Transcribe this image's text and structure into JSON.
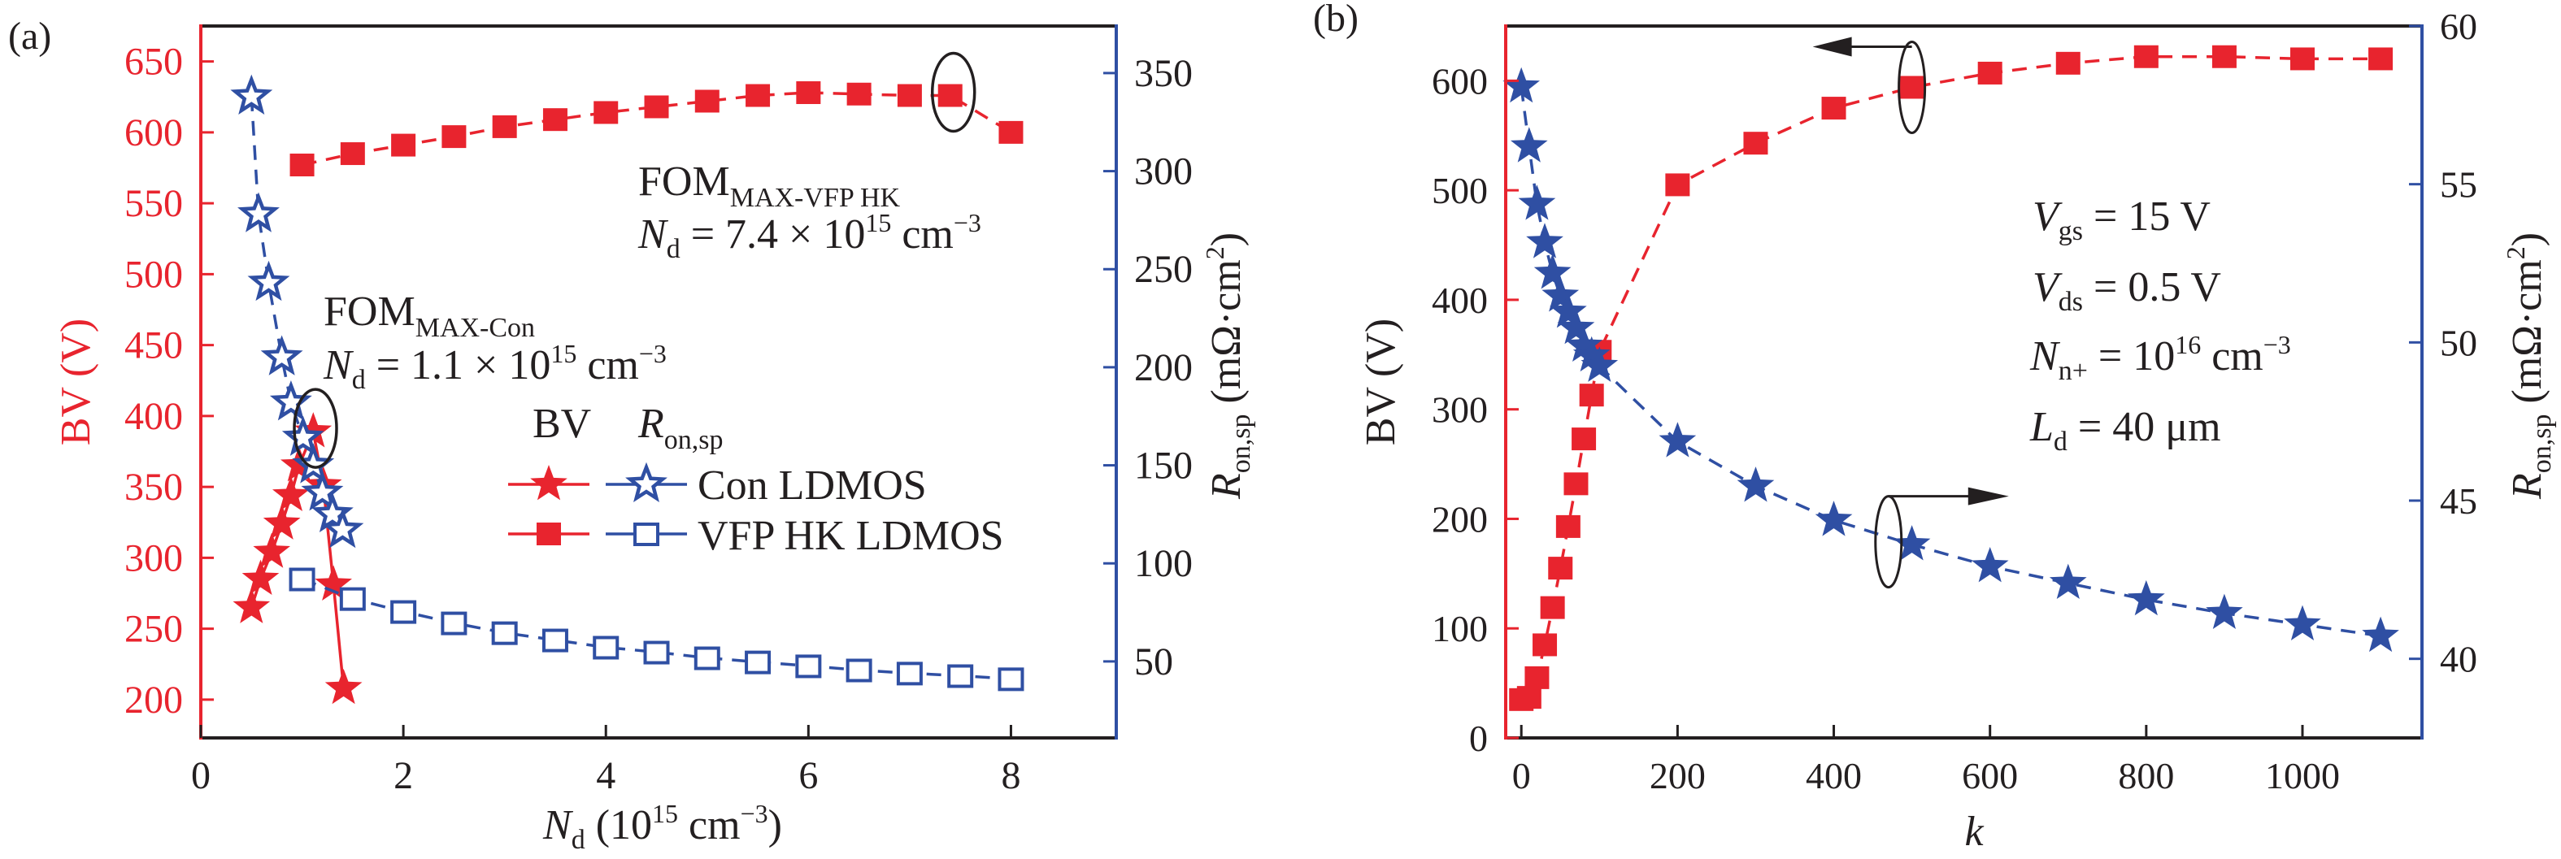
{
  "figure": {
    "colors": {
      "bv": "#e8242e",
      "ron": "#2f4fa3",
      "frame": "#231f20",
      "text": "#231f20"
    }
  },
  "chart_data": [
    {
      "panel_label": "(a)",
      "type": "line",
      "xlabel": {
        "main": "N",
        "sub": "d",
        "rest": " (10",
        "sup": "15",
        "unit": " cm",
        "unit_sup": "−3",
        "close": ")"
      },
      "ylabel_left": "BV (V)",
      "ylabel_right": {
        "main": "R",
        "sub": "on,sp",
        "rest": " (mΩ·cm",
        "sup": "2",
        "close": ")"
      },
      "xlim": [
        0,
        9.04
      ],
      "ylim_left": [
        173,
        675
      ],
      "ylim_right": [
        11,
        374
      ],
      "xticks": [
        0,
        2,
        4,
        6,
        8
      ],
      "yticks_left": [
        200,
        250,
        300,
        350,
        400,
        450,
        500,
        550,
        600,
        650
      ],
      "yticks_right": [
        50,
        100,
        150,
        200,
        250,
        300,
        350
      ],
      "grid": false,
      "legend": {
        "position": "center-right",
        "header_bv": "BV",
        "header_ron": {
          "main": "R",
          "sub": "on,sp"
        },
        "entries": [
          "Con LDMOS",
          "VFP HK LDMOS"
        ]
      },
      "series": [
        {
          "name": "Con LDMOS BV",
          "axis": "left",
          "marker": "star-filled",
          "line": "solid",
          "color": "bv",
          "x": [
            0.5,
            0.59,
            0.7,
            0.8,
            0.89,
            0.97,
            1.11,
            1.21,
            1.31,
            1.41
          ],
          "y": [
            265,
            285,
            304,
            324,
            344,
            365,
            389,
            351,
            281,
            208
          ]
        },
        {
          "name": "Con LDMOS Ron,sp",
          "axis": "right",
          "marker": "star-open",
          "line": "dashed",
          "color": "ron",
          "x": [
            0.5,
            0.57,
            0.67,
            0.8,
            0.89,
            1.01,
            1.11,
            1.2,
            1.3,
            1.4
          ],
          "y": [
            338,
            278,
            243,
            205,
            182,
            164,
            150,
            136,
            125,
            117
          ]
        },
        {
          "name": "VFP HK LDMOS BV",
          "axis": "left",
          "marker": "square-filled",
          "line": "dashed",
          "color": "bv",
          "x": [
            1.0,
            1.5,
            2.0,
            2.5,
            3.0,
            3.5,
            4.0,
            4.5,
            5.0,
            5.5,
            6.0,
            6.5,
            7.0,
            7.4,
            8.0
          ],
          "y": [
            577,
            585,
            591,
            597,
            604,
            609,
            614,
            618,
            622,
            626,
            628,
            627,
            626,
            626,
            600
          ]
        },
        {
          "name": "VFP HK LDMOS Ron,sp",
          "axis": "right",
          "marker": "square-open",
          "line": "dashed",
          "color": "ron",
          "x": [
            1.0,
            1.5,
            2.0,
            2.5,
            3.0,
            3.5,
            4.0,
            4.5,
            5.0,
            5.5,
            6.0,
            6.5,
            7.0,
            7.5,
            8.0
          ],
          "y": [
            92,
            82,
            75.4,
            69.6,
            64.6,
            60.9,
            57.2,
            54.7,
            51.8,
            49.7,
            47.7,
            45.6,
            44.0,
            42.7,
            41.1
          ]
        }
      ],
      "annotations": [
        {
          "id": "fom-vfp",
          "title_main": "FOM",
          "title_sub": "MAX-VFP HK",
          "line2_main": "N",
          "line2_sub": "d",
          "line2_rest": " = 7.4 × 10",
          "line2_sup": "15",
          "line2_unit": " cm",
          "line2_unit_sup": "−3",
          "circled_point": {
            "x": 7.4,
            "y": 626,
            "axis": "left"
          }
        },
        {
          "id": "fom-con",
          "title_main": "FOM",
          "title_sub": "MAX-Con",
          "line2_main": "N",
          "line2_sub": "d",
          "line2_rest": " = 1.1 × 10",
          "line2_sup": "15",
          "line2_unit": " cm",
          "line2_unit_sup": "−3",
          "circled_point": {
            "x": 1.1,
            "y": 389,
            "axis": "left"
          }
        }
      ]
    },
    {
      "panel_label": "(b)",
      "type": "line",
      "xlabel": "k",
      "ylabel_left": "BV (V)",
      "ylabel_right": {
        "main": "R",
        "sub": "on,sp",
        "rest": " (mΩ·cm",
        "sup": "2",
        "close": ")"
      },
      "xlim": [
        -20,
        1153
      ],
      "ylim_left": [
        0,
        650
      ],
      "ylim_right": [
        37.5,
        60
      ],
      "xticks": [
        0,
        200,
        400,
        600,
        800,
        1000
      ],
      "yticks_left": [
        0,
        100,
        200,
        300,
        400,
        500,
        600
      ],
      "yticks_right": [
        40,
        45,
        50,
        55,
        60
      ],
      "grid": false,
      "series": [
        {
          "name": "BV",
          "axis": "left",
          "marker": "square-filled",
          "line": "dashed",
          "color": "bv",
          "x": [
            0,
            10,
            20,
            30,
            40,
            50,
            60,
            70,
            80,
            90,
            100,
            200,
            300,
            400,
            500,
            600,
            700,
            800,
            900,
            1000,
            1100
          ],
          "y": [
            35,
            37,
            55,
            85,
            119,
            155,
            193,
            232,
            273,
            313,
            353,
            505,
            543,
            575,
            594,
            607,
            616,
            622,
            622,
            620,
            620
          ]
        },
        {
          "name": "Ron,sp",
          "axis": "right",
          "marker": "star-filled",
          "line": "dashed",
          "color": "ron",
          "x": [
            0,
            10,
            20,
            30,
            40,
            50,
            60,
            70,
            80,
            90,
            100,
            200,
            300,
            400,
            500,
            600,
            700,
            800,
            900,
            1000,
            1100
          ],
          "y": [
            58.08,
            56.19,
            54.37,
            53.16,
            52.19,
            51.47,
            50.96,
            50.45,
            49.89,
            49.58,
            49.25,
            46.87,
            45.46,
            44.38,
            43.61,
            42.92,
            42.39,
            41.87,
            41.44,
            41.08,
            40.72
          ]
        }
      ],
      "annotations": [
        {
          "id": "vgs",
          "main": "V",
          "sub": "gs",
          "rest": " = 15 V"
        },
        {
          "id": "vds",
          "main": "V",
          "sub": "ds",
          "rest": " = 0.5 V"
        },
        {
          "id": "nn",
          "main": "N",
          "sub": "n+",
          "rest": " = 10",
          "sup": "16",
          "unit": " cm",
          "unit_sup": "−3"
        },
        {
          "id": "ld",
          "main": "L",
          "sub": "d",
          "rest": " = 40 μm"
        }
      ],
      "arrows": [
        {
          "id": "arrow-bv",
          "points_to": "left-axis",
          "circled_point": {
            "x": 500,
            "y": 594,
            "axis": "left"
          }
        },
        {
          "id": "arrow-ron",
          "points_to": "right-axis",
          "circled_point": {
            "x": 470,
            "y": 43.7,
            "axis": "right"
          }
        }
      ]
    }
  ]
}
